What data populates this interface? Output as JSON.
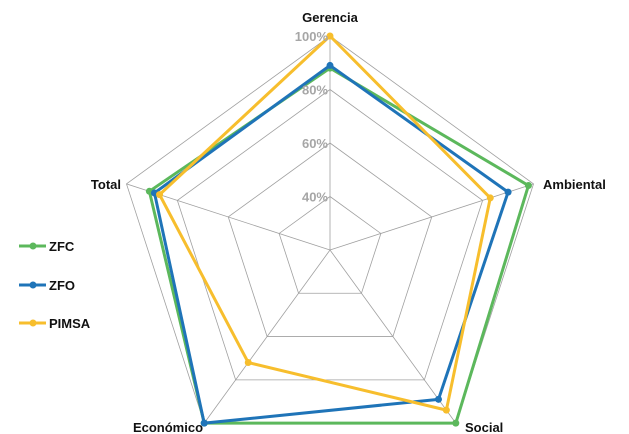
{
  "chart_data": {
    "type": "radar",
    "title": "",
    "categories": [
      "Gerencia",
      "Ambiental",
      "Social",
      "Económico",
      "Total"
    ],
    "rlim": [
      20,
      100
    ],
    "ticks": [
      40,
      60,
      80,
      100
    ],
    "tick_labels": [
      "40%",
      "60%",
      "80%",
      "100%"
    ],
    "grid": true,
    "legend_position": "left",
    "series": [
      {
        "name": "ZFC",
        "color": "#5cb85c",
        "values": [
          88,
          98,
          100,
          100,
          91
        ]
      },
      {
        "name": "ZFO",
        "color": "#1f74b8",
        "values": [
          89,
          90,
          89,
          100,
          89
        ]
      },
      {
        "name": "PIMSA",
        "color": "#f7be2d",
        "values": [
          100,
          83,
          94,
          72,
          87
        ]
      }
    ]
  }
}
